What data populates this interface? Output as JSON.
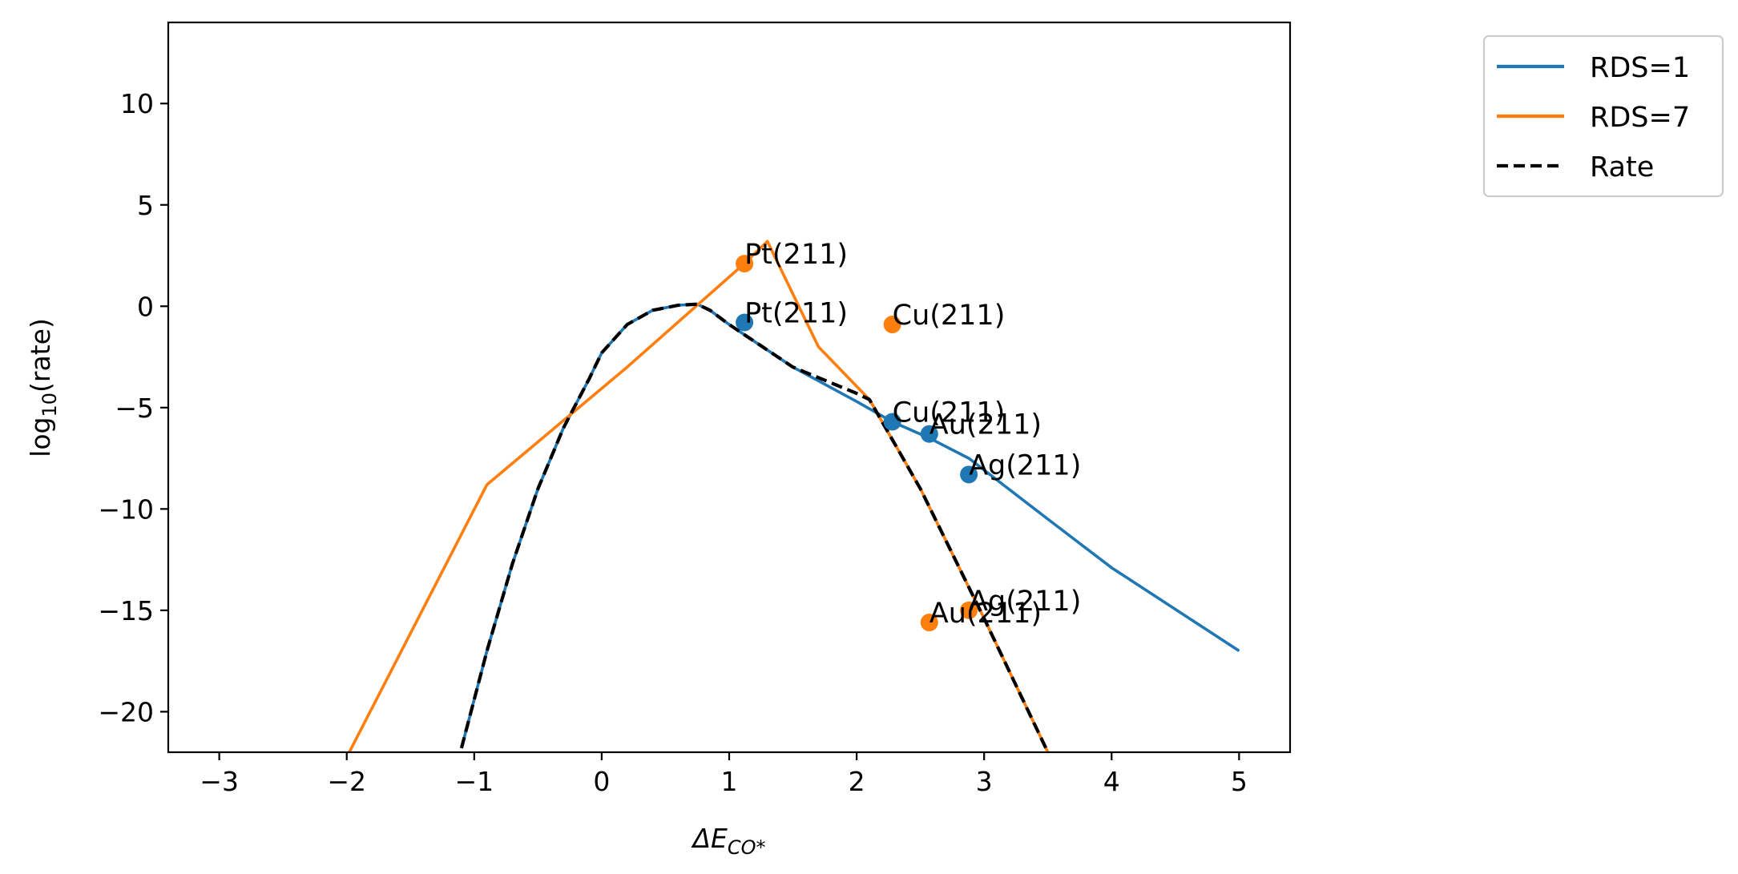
{
  "chart_data": {
    "type": "line",
    "xlabel_main": "ΔE",
    "xlabel_sub": "CO*",
    "ylabel_main": "log",
    "ylabel_sub": "10",
    "ylabel_tail": "(rate)",
    "xlim": [
      -3.4,
      5.4
    ],
    "ylim": [
      -22,
      14
    ],
    "xticks": [
      -3,
      -2,
      -1,
      0,
      1,
      2,
      3,
      4,
      5
    ],
    "xtick_labels": [
      "−3",
      "−2",
      "−1",
      "0",
      "1",
      "2",
      "3",
      "4",
      "5"
    ],
    "yticks": [
      -20,
      -15,
      -10,
      -5,
      0,
      5,
      10
    ],
    "ytick_labels": [
      "−20",
      "−15",
      "−10",
      "−5",
      "0",
      "5",
      "10"
    ],
    "grid": false,
    "legend_position": "outside-top-right",
    "series": [
      {
        "name": "RDS=1",
        "color": "#1f77b4",
        "style": "solid",
        "x": [
          -1.1,
          -0.9,
          -0.7,
          -0.5,
          -0.3,
          -0.1,
          0.0,
          0.2,
          0.4,
          0.6,
          0.75,
          0.85,
          1.0,
          1.5,
          2.0,
          2.28,
          2.57,
          2.88,
          3.5,
          4.0,
          5.0
        ],
        "y": [
          -21.8,
          -17.0,
          -12.7,
          -9.0,
          -6.0,
          -3.6,
          -2.3,
          -0.9,
          -0.2,
          0.05,
          0.1,
          -0.2,
          -0.9,
          -3.0,
          -4.7,
          -5.7,
          -6.5,
          -7.5,
          -10.5,
          -12.9,
          -17.0
        ]
      },
      {
        "name": "RDS=7",
        "color": "#ff7f0e",
        "style": "solid",
        "x": [
          -1.98,
          -0.9,
          0.2,
          1.1,
          1.3,
          1.7,
          2.1,
          2.5,
          3.0,
          3.5
        ],
        "y": [
          -22.0,
          -8.8,
          -3.0,
          2.0,
          3.2,
          -2.0,
          -4.6,
          -9.0,
          -15.4,
          -22.0
        ]
      },
      {
        "name": "Rate",
        "color": "#000000",
        "style": "dashed",
        "x": [
          -1.1,
          -0.9,
          -0.7,
          -0.5,
          -0.3,
          -0.1,
          0.0,
          0.2,
          0.4,
          0.6,
          0.75,
          0.85,
          1.0,
          1.5,
          2.0,
          2.1,
          2.5,
          3.0,
          3.5
        ],
        "y": [
          -21.8,
          -17.0,
          -12.7,
          -9.0,
          -6.0,
          -3.6,
          -2.3,
          -0.9,
          -0.2,
          0.05,
          0.1,
          -0.2,
          -0.9,
          -3.0,
          -4.3,
          -4.6,
          -9.0,
          -15.4,
          -22.0
        ]
      }
    ],
    "points": [
      {
        "series": "RDS=1",
        "label": "Pt(211)",
        "x": 1.12,
        "y": -0.8
      },
      {
        "series": "RDS=1",
        "label": "Cu(211)",
        "x": 2.28,
        "y": -5.7
      },
      {
        "series": "RDS=1",
        "label": "Au(211)",
        "x": 2.57,
        "y": -6.3
      },
      {
        "series": "RDS=1",
        "label": "Ag(211)",
        "x": 2.88,
        "y": -8.3
      },
      {
        "series": "RDS=7",
        "label": "Pt(211)",
        "x": 1.12,
        "y": 2.1
      },
      {
        "series": "RDS=7",
        "label": "Cu(211)",
        "x": 2.28,
        "y": -0.9
      },
      {
        "series": "RDS=7",
        "label": "Au(211)",
        "x": 2.57,
        "y": -15.6
      },
      {
        "series": "RDS=7",
        "label": "Ag(211)",
        "x": 2.88,
        "y": -15.0
      }
    ]
  }
}
